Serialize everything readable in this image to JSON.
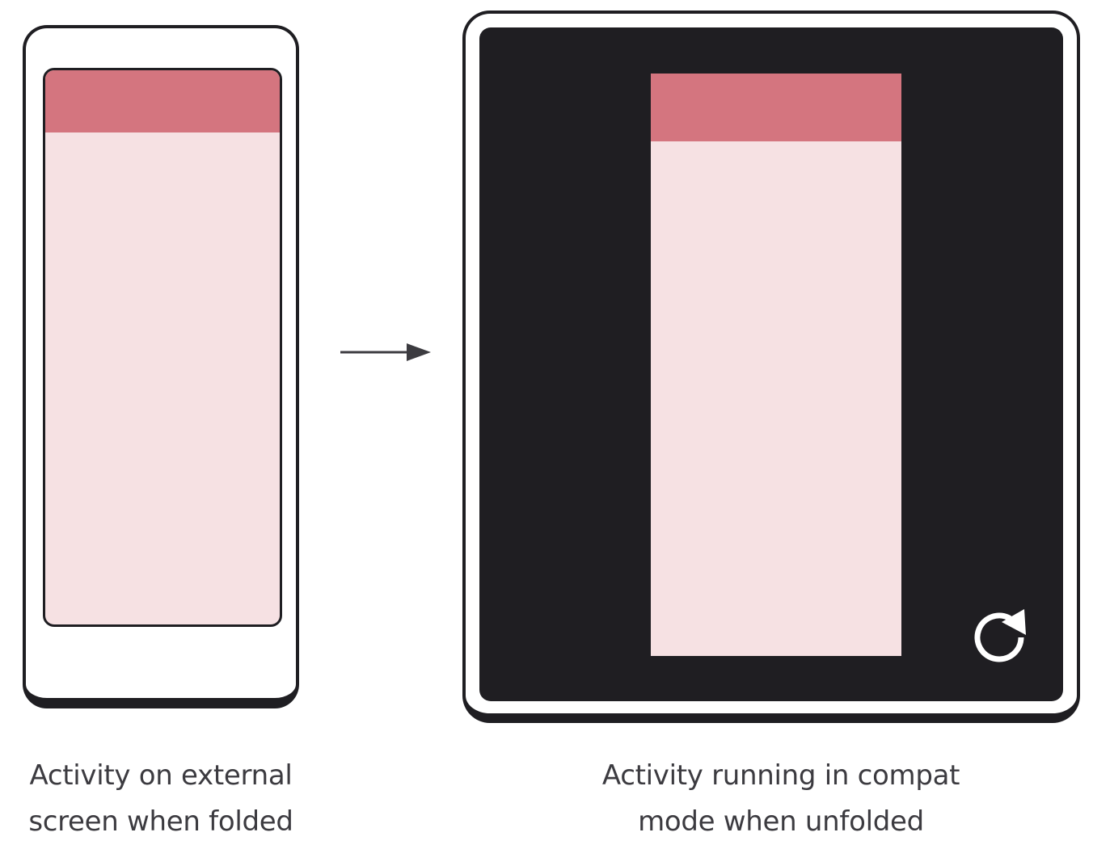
{
  "colors": {
    "outline": "#1f1e22",
    "app_bar": "#d4757f",
    "app_body": "#f6e1e3",
    "display_background": "#1f1e22",
    "caption_text": "#3c3b40",
    "arrow": "#3c3b40"
  },
  "folded_device": {
    "caption_line_1": "Activity on external",
    "caption_line_2": "screen when folded"
  },
  "transition": {
    "icon": "arrow-right-icon"
  },
  "unfolded_device": {
    "caption_line_1": "Activity running in compat",
    "caption_line_2": "mode when unfolded",
    "restart_icon": "restart-icon"
  }
}
